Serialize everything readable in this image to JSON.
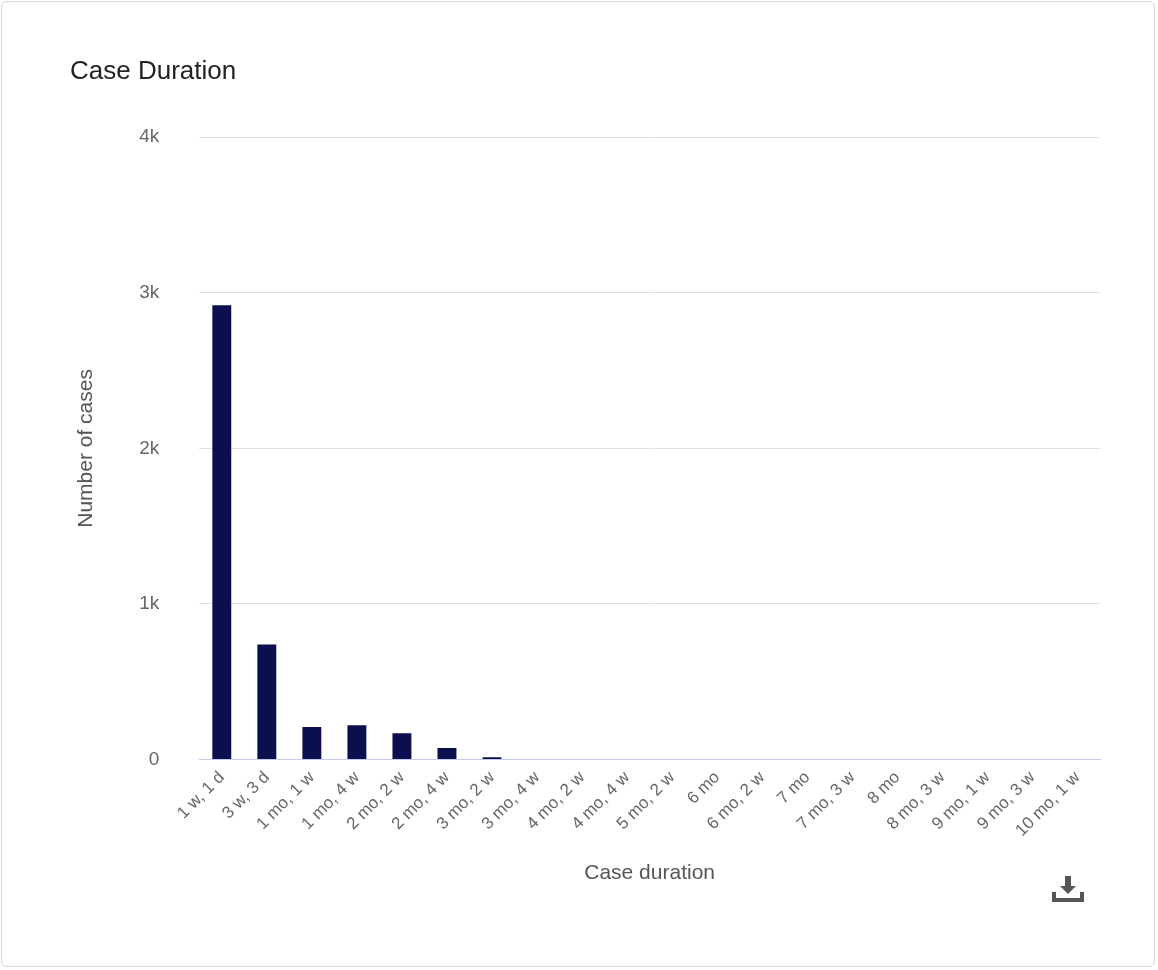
{
  "chart_data": {
    "type": "bar",
    "title": "Case Duration",
    "x_label": "Case duration",
    "y_label": "Number of cases",
    "categories": [
      "1 w, 1 d",
      "3 w, 3 d",
      "1 mo, 1 w",
      "1 mo, 4 w",
      "2 mo, 2 w",
      "2 mo, 4 w",
      "3 mo, 2 w",
      "3 mo, 4 w",
      "4 mo, 2 w",
      "4 mo, 4 w",
      "5 mo, 2 w",
      "6 mo",
      "6 mo, 2 w",
      "7 mo",
      "7 mo, 3 w",
      "8 mo",
      "8 mo, 3 w",
      "9 mo, 1 w",
      "9 mo, 3 w",
      "10 mo, 1 w"
    ],
    "values": [
      2920,
      740,
      210,
      220,
      170,
      75,
      15,
      0,
      0,
      0,
      0,
      0,
      0,
      0,
      0,
      0,
      0,
      0,
      0,
      0
    ],
    "color": "#0b0f4d",
    "ylim": [
      0,
      4000
    ],
    "yticks": [
      0,
      {
        "value": 1000,
        "label": "1k"
      },
      {
        "value": 2000,
        "label": "2k"
      },
      {
        "value": 3000,
        "label": "3k"
      },
      {
        "value": 4000,
        "label": "4k"
      }
    ],
    "grid": true
  }
}
